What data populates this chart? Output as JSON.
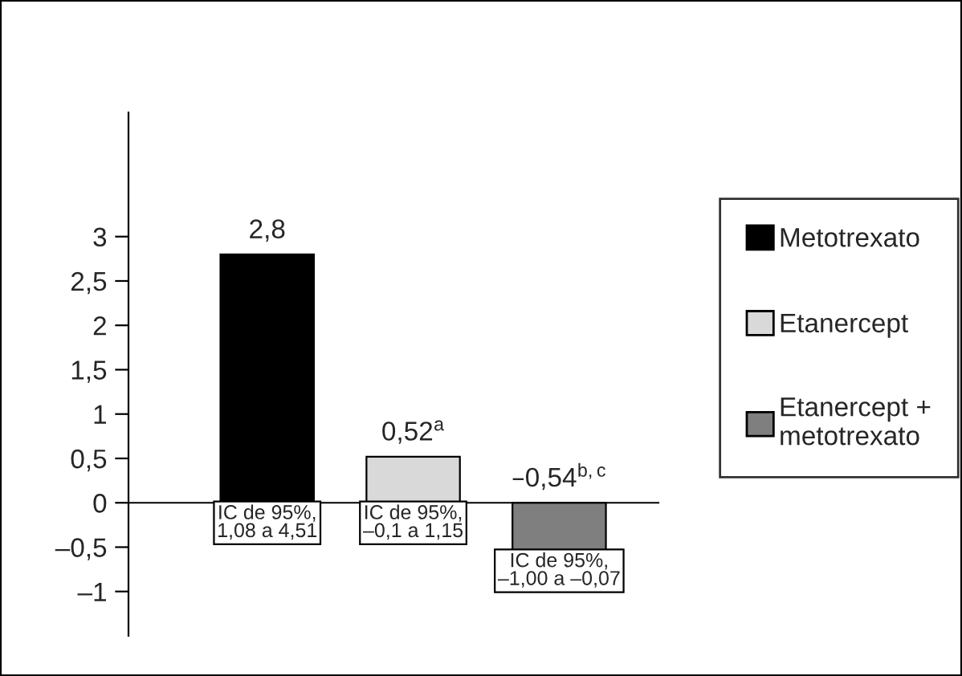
{
  "chart_data": {
    "type": "bar",
    "categories": [
      null,
      null,
      null
    ],
    "series": [
      {
        "name": "Metotrexato",
        "color": "#000000",
        "values": [
          2.8,
          null,
          null
        ],
        "value_labels": [
          "2,8",
          null,
          null
        ]
      },
      {
        "name": "Etanercept",
        "color": "#d9d9d9",
        "values": [
          null,
          0.52,
          null
        ],
        "value_labels": [
          null,
          "0,52$^{a}$",
          null
        ]
      },
      {
        "name": "Etanercept +\nmetotrexato",
        "color": "#7f7f7f",
        "values": [
          null,
          null,
          -0.54
        ],
        "value_labels": [
          null,
          null,
          "–0,54$^{b,c}$"
        ]
      }
    ],
    "ylim": [
      -1.5,
      4.4
    ],
    "yticks": [
      {
        "value": -1,
        "label": "–1"
      },
      {
        "value": -0.5,
        "label": "–0,5"
      },
      {
        "value": 0,
        "label": "0"
      },
      {
        "value": 0.5,
        "label": "0,5"
      },
      {
        "value": 1,
        "label": "1"
      },
      {
        "value": 1.5,
        "label": "1,5"
      },
      {
        "value": 2,
        "label": "2"
      },
      {
        "value": 2.5,
        "label": "2,5"
      },
      {
        "value": 3,
        "label": "3"
      }
    ],
    "annotations": [
      "IC de 95%,\n1,08 a 4,51",
      "IC de 95%,\n–0,1 a 1,15",
      "IC de 95%,\n–1,00 a –0,07"
    ],
    "legend": "right"
  }
}
